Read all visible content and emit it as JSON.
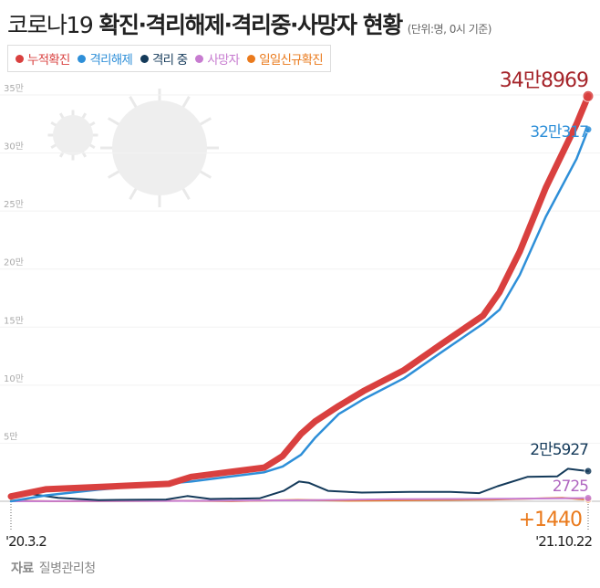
{
  "title": {
    "prefix": "코로나19",
    "main": "확진·격리해제·격리중·사망자 현황",
    "unit": "(단위:명, 0시 기준)"
  },
  "source": {
    "label": "자료",
    "value": "질병관리청"
  },
  "logo": "news1",
  "chart_data": {
    "type": "line",
    "ylim": [
      0,
      35
    ],
    "yticks": [
      "35만",
      "30만",
      "25만",
      "20만",
      "15만",
      "10만",
      "5만"
    ],
    "ytick_values": [
      35,
      30,
      25,
      20,
      15,
      10,
      5
    ],
    "y_unit": "만",
    "xlim": [
      "2020-03-02",
      "2021-10-22"
    ],
    "xtick_labels": [
      "'20.3.2",
      "'21.10.22"
    ],
    "legend_position": "top-left",
    "series": [
      {
        "name": "누적확진",
        "color": "#d9403f",
        "end_label": "34만8969",
        "points": [
          [
            "2020-03-02",
            0.42
          ],
          [
            "2020-04-07",
            1.03
          ],
          [
            "2020-08-13",
            1.5
          ],
          [
            "2020-09-05",
            2.1
          ],
          [
            "2020-11-20",
            2.9
          ],
          [
            "2020-12-09",
            3.9
          ],
          [
            "2020-12-28",
            5.8
          ],
          [
            "2021-01-12",
            6.9
          ],
          [
            "2021-02-05",
            8.2
          ],
          [
            "2021-03-03",
            9.5
          ],
          [
            "2021-04-14",
            11.3
          ],
          [
            "2021-05-22",
            13.5
          ],
          [
            "2021-07-05",
            16.0
          ],
          [
            "2021-07-22",
            18.0
          ],
          [
            "2021-08-12",
            21.5
          ],
          [
            "2021-09-08",
            27.0
          ],
          [
            "2021-10-10",
            32.5
          ],
          [
            "2021-10-22",
            34.8969
          ]
        ]
      },
      {
        "name": "격리해제",
        "color": "#2e8fd8",
        "end_label": "32만317",
        "points": [
          [
            "2020-03-02",
            0.003
          ],
          [
            "2020-04-07",
            0.5
          ],
          [
            "2020-06-01",
            1.0
          ],
          [
            "2020-09-05",
            1.7
          ],
          [
            "2020-11-20",
            2.5
          ],
          [
            "2020-12-09",
            3.0
          ],
          [
            "2020-12-28",
            4.0
          ],
          [
            "2021-01-12",
            5.5
          ],
          [
            "2021-02-05",
            7.5
          ],
          [
            "2021-03-03",
            8.8
          ],
          [
            "2021-04-14",
            10.6
          ],
          [
            "2021-05-22",
            12.8
          ],
          [
            "2021-07-05",
            15.3
          ],
          [
            "2021-07-22",
            16.5
          ],
          [
            "2021-08-12",
            19.5
          ],
          [
            "2021-09-08",
            24.5
          ],
          [
            "2021-10-10",
            29.5
          ],
          [
            "2021-10-22",
            32.0317
          ]
        ]
      },
      {
        "name": "격리 중",
        "color": "#143a5a",
        "end_label": "2만5927",
        "points": [
          [
            "2020-03-02",
            0.4
          ],
          [
            "2020-03-12",
            0.75
          ],
          [
            "2020-04-20",
            0.3
          ],
          [
            "2020-06-01",
            0.1
          ],
          [
            "2020-08-10",
            0.15
          ],
          [
            "2020-09-01",
            0.45
          ],
          [
            "2020-09-25",
            0.2
          ],
          [
            "2020-11-15",
            0.25
          ],
          [
            "2020-12-10",
            0.9
          ],
          [
            "2020-12-26",
            1.7
          ],
          [
            "2021-01-05",
            1.6
          ],
          [
            "2021-01-25",
            0.9
          ],
          [
            "2021-03-01",
            0.75
          ],
          [
            "2021-04-20",
            0.8
          ],
          [
            "2021-06-01",
            0.8
          ],
          [
            "2021-07-01",
            0.7
          ],
          [
            "2021-07-20",
            1.3
          ],
          [
            "2021-08-20",
            2.1
          ],
          [
            "2021-09-20",
            2.15
          ],
          [
            "2021-10-01",
            2.8
          ],
          [
            "2021-10-22",
            2.5927
          ]
        ]
      },
      {
        "name": "사망자",
        "color": "#c77cd0",
        "end_label": "2725",
        "points": [
          [
            "2020-03-02",
            0.003
          ],
          [
            "2020-09-01",
            0.03
          ],
          [
            "2020-12-31",
            0.09
          ],
          [
            "2021-04-01",
            0.17
          ],
          [
            "2021-08-01",
            0.21
          ],
          [
            "2021-10-22",
            0.2725
          ]
        ]
      },
      {
        "name": "일일신규확진",
        "color": "#ea7a1c",
        "end_label": "+1440",
        "points": [
          [
            "2020-03-02",
            0.06
          ],
          [
            "2020-04-15",
            0.003
          ],
          [
            "2020-08-27",
            0.04
          ],
          [
            "2020-10-15",
            0.01
          ],
          [
            "2020-12-25",
            0.12
          ],
          [
            "2021-02-15",
            0.05
          ],
          [
            "2021-07-15",
            0.15
          ],
          [
            "2021-09-25",
            0.3
          ],
          [
            "2021-10-22",
            0.144
          ]
        ]
      }
    ]
  }
}
